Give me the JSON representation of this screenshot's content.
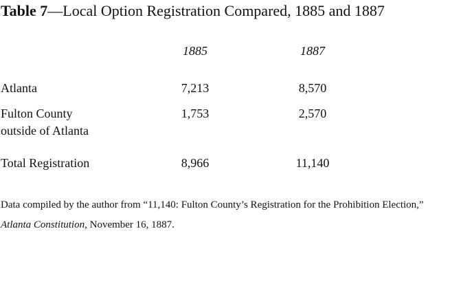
{
  "header": {
    "label": "Table 7",
    "title": "—Local Option Registration Compared, 1885 and 1887"
  },
  "table": {
    "columns": [
      "1885",
      "1887"
    ],
    "rows": [
      [
        "Atlanta",
        "7,213",
        "8,570"
      ],
      [
        "Fulton County outside of Atlanta",
        "1,753",
        "2,570"
      ],
      [
        "Total Registration",
        "8,966",
        "11,140"
      ]
    ]
  },
  "note": {
    "parts": [
      "Data compiled by the author from “11,140: Fulton County’s Registration for the Prohibition Election,” ",
      "Atlanta Constitution",
      ", November 16, 1887."
    ]
  }
}
